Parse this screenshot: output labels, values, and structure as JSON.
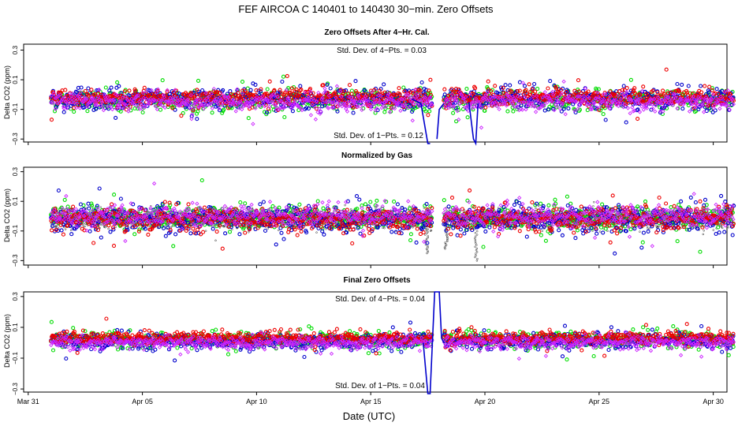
{
  "chart_data": {
    "type": "scatter",
    "title": "FEF   AIRCOA C   140401 to 140430   30−min. Zero Offsets",
    "xlabel": "Date (UTC)",
    "x_unit": "days since Mar 31 00:00 UTC",
    "xlim": [
      -0.2,
      30.6
    ],
    "x_ticks": [
      {
        "label": "Mar 31",
        "value": 0
      },
      {
        "label": "Apr 05",
        "value": 5
      },
      {
        "label": "Apr 10",
        "value": 10
      },
      {
        "label": "Apr 15",
        "value": 15
      },
      {
        "label": "Apr 20",
        "value": 20
      },
      {
        "label": "Apr 25",
        "value": 25
      },
      {
        "label": "Apr 30",
        "value": 30
      }
    ],
    "series_colors": {
      "green": "#00dd00",
      "blue": "#0000cc",
      "red": "#ee0000",
      "magenta": "#cc22ff",
      "black": "#000000"
    },
    "data_range": {
      "start": 1.0,
      "end": 30.9,
      "step": 0.0208,
      "gap": [
        17.7,
        18.2
      ]
    },
    "panels": [
      {
        "title": "Zero Offsets After 4−Hr. Cal.",
        "ylabel": "Delta CO2 (ppm)",
        "ylim": [
          -0.32,
          0.34
        ],
        "yticks": [
          {
            "label": "0.3",
            "value": 0.3
          },
          {
            "label": "0.1",
            "value": 0.1
          },
          {
            "label": "−0.1",
            "value": -0.1
          },
          {
            "label": "−0.3",
            "value": -0.3
          }
        ],
        "annotations": [
          {
            "text": "Std. Dev. of 4−Pts. =  0.03",
            "position": "top"
          },
          {
            "text": "Std. Dev. of 1−Pts. =  0.12",
            "position": "bottom"
          }
        ],
        "series": [
          {
            "name": "green",
            "color": "#00dd00",
            "center": -0.04,
            "spread": 0.035,
            "marker": "circle"
          },
          {
            "name": "blue",
            "color": "#0000cc",
            "center": -0.03,
            "spread": 0.035,
            "marker": "circle"
          },
          {
            "name": "red",
            "color": "#ee0000",
            "center": -0.02,
            "spread": 0.03,
            "marker": "circle"
          },
          {
            "name": "magenta",
            "color": "#cc22ff",
            "center": -0.05,
            "spread": 0.03,
            "marker": "diamond"
          }
        ],
        "lines": [
          {
            "color": "#0000cc",
            "x": [
              16.8,
              17.2,
              17.5,
              17.6
            ],
            "y": [
              -0.03,
              -0.06,
              -0.33,
              -0.33
            ]
          },
          {
            "color": "#0000cc",
            "x": [
              17.9,
              18.0,
              18.2
            ],
            "y": [
              -0.3,
              -0.1,
              -0.06
            ]
          },
          {
            "color": "#0000cc",
            "x": [
              19.3,
              19.5,
              19.6,
              19.7
            ],
            "y": [
              -0.05,
              -0.3,
              -0.33,
              -0.06
            ]
          }
        ],
        "noise_band": false
      },
      {
        "title": "Normalized by Gas",
        "ylabel": "Delta CO2 (ppm)",
        "ylim": [
          -0.33,
          0.33
        ],
        "yticks": [
          {
            "label": "0.3",
            "value": 0.3
          },
          {
            "label": "0.1",
            "value": 0.1
          },
          {
            "label": "−0.1",
            "value": -0.1
          },
          {
            "label": "−0.3",
            "value": -0.3
          }
        ],
        "annotations": [],
        "series": [
          {
            "name": "green",
            "color": "#00dd00",
            "center": -0.01,
            "spread": 0.04,
            "marker": "circle"
          },
          {
            "name": "blue",
            "color": "#0000cc",
            "center": -0.02,
            "spread": 0.045,
            "marker": "circle"
          },
          {
            "name": "red",
            "color": "#ee0000",
            "center": -0.02,
            "spread": 0.04,
            "marker": "circle"
          },
          {
            "name": "magenta",
            "color": "#cc22ff",
            "center": 0.0,
            "spread": 0.035,
            "marker": "diamond"
          }
        ],
        "lines": [],
        "noise_band": true,
        "band_series": {
          "name": "black",
          "color": "#000000",
          "center": -0.02,
          "spread": 0.03
        }
      },
      {
        "title": "Final Zero Offsets",
        "ylabel": "Delta CO2 (ppm)",
        "ylim": [
          -0.32,
          0.33
        ],
        "yticks": [
          {
            "label": "0.3",
            "value": 0.3
          },
          {
            "label": "0.1",
            "value": 0.1
          },
          {
            "label": "−0.1",
            "value": -0.1
          },
          {
            "label": "−0.3",
            "value": -0.3
          }
        ],
        "annotations": [
          {
            "text": "Std. Dev. of 4−Pts. =  0.04",
            "position": "top"
          },
          {
            "text": "Std. Dev. of 1−Pts. =  0.04",
            "position": "bottom"
          }
        ],
        "series": [
          {
            "name": "green",
            "color": "#00dd00",
            "center": 0.02,
            "spread": 0.025,
            "marker": "circle"
          },
          {
            "name": "blue",
            "color": "#0000cc",
            "center": 0.01,
            "spread": 0.025,
            "marker": "circle"
          },
          {
            "name": "red",
            "color": "#ee0000",
            "center": 0.03,
            "spread": 0.02,
            "marker": "circle"
          },
          {
            "name": "magenta",
            "color": "#cc22ff",
            "center": 0.0,
            "spread": 0.02,
            "marker": "diamond"
          }
        ],
        "lines": [
          {
            "color": "#0000cc",
            "x": [
              17.3,
              17.5,
              17.6,
              17.8,
              18.0,
              18.1,
              18.2
            ],
            "y": [
              0.0,
              -0.33,
              -0.33,
              0.33,
              0.33,
              0.03,
              0.0
            ]
          }
        ],
        "noise_band": false
      }
    ]
  }
}
